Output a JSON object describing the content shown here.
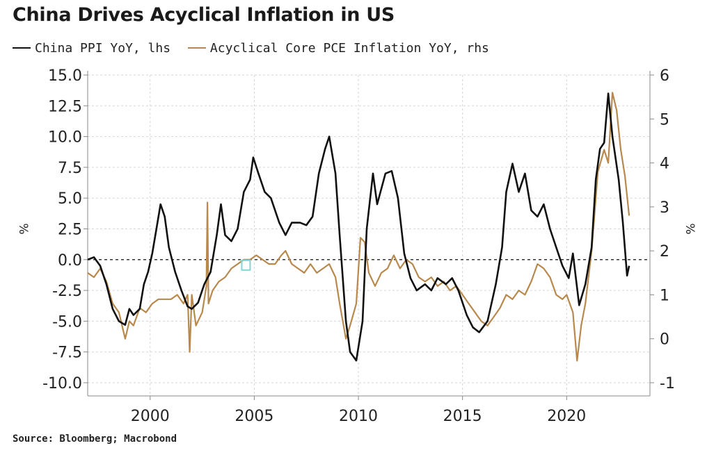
{
  "title": "China Drives Acyclical Inflation in US",
  "legend": {
    "china_ppi": "China PPI YoY, lhs",
    "core_pce": "Acyclical Core PCE Inflation YoY, rhs"
  },
  "source": "Source: Bloomberg; Macrobond",
  "colors": {
    "china_ppi": "#111111",
    "core_pce": "#b8894d",
    "zero_line": "#333333",
    "grid": "#d6d6d6",
    "marker": "#7fd6d6"
  },
  "chart_data": {
    "type": "line",
    "xlabel": "",
    "ylabel_left": "%",
    "ylabel_right": "%",
    "xlim": [
      1997.0,
      2024.0
    ],
    "ylim_left": [
      -10.0,
      15.0
    ],
    "ylim_right": [
      -1,
      6
    ],
    "x_ticks": [
      2000,
      2005,
      2010,
      2015,
      2020
    ],
    "x_tick_labels": [
      "2000",
      "2005",
      "2010",
      "2015",
      "2020"
    ],
    "y_left_ticks": [
      15.0,
      12.5,
      10.0,
      7.5,
      5.0,
      2.5,
      0.0,
      -2.5,
      -5.0,
      -7.5,
      -10.0
    ],
    "y_left_tick_labels": [
      "15.0",
      "12.5",
      "10.0",
      "7.5",
      "5.0",
      "2.5",
      "0.0",
      "-2.5",
      "-5.0",
      "-7.5",
      "-10.0"
    ],
    "y_right_ticks": [
      6,
      5,
      4,
      3,
      2,
      1,
      0,
      -1
    ],
    "y_right_tick_labels": [
      "6",
      "5",
      "4",
      "3",
      "2",
      "1",
      "0",
      "-1"
    ],
    "grid": true,
    "reference_line_left": 0.0,
    "series": [
      {
        "name": "China PPI YoY, lhs",
        "axis": "left",
        "x": [
          1997.0,
          1997.3,
          1997.6,
          1997.9,
          1998.2,
          1998.5,
          1998.8,
          1999.0,
          1999.2,
          1999.5,
          1999.7,
          1999.9,
          2000.1,
          2000.3,
          2000.5,
          2000.7,
          2000.9,
          2001.2,
          2001.5,
          2001.8,
          2002.0,
          2002.3,
          2002.6,
          2002.9,
          2003.2,
          2003.4,
          2003.6,
          2003.9,
          2004.2,
          2004.5,
          2004.8,
          2004.95,
          2005.2,
          2005.5,
          2005.8,
          2006.2,
          2006.5,
          2006.8,
          2007.2,
          2007.5,
          2007.8,
          2008.1,
          2008.4,
          2008.6,
          2008.9,
          2009.1,
          2009.4,
          2009.6,
          2009.9,
          2010.2,
          2010.4,
          2010.7,
          2010.9,
          2011.3,
          2011.6,
          2011.9,
          2012.2,
          2012.5,
          2012.8,
          2013.2,
          2013.5,
          2013.8,
          2014.2,
          2014.5,
          2014.8,
          2015.2,
          2015.5,
          2015.8,
          2016.2,
          2016.6,
          2016.9,
          2017.1,
          2017.4,
          2017.7,
          2018.0,
          2018.3,
          2018.6,
          2018.9,
          2019.2,
          2019.5,
          2019.8,
          2020.1,
          2020.3,
          2020.6,
          2020.9,
          2021.2,
          2021.4,
          2021.6,
          2021.8,
          2022.0,
          2022.2,
          2022.5,
          2022.7,
          2022.9,
          2023.0
        ],
        "values": [
          0.0,
          0.2,
          -0.5,
          -2.0,
          -4.0,
          -5.0,
          -5.3,
          -4.0,
          -4.5,
          -4.0,
          -2.0,
          -1.0,
          0.5,
          2.5,
          4.5,
          3.5,
          1.0,
          -1.0,
          -2.5,
          -3.8,
          -4.0,
          -3.5,
          -2.0,
          -1.0,
          2.0,
          4.5,
          2.0,
          1.5,
          2.5,
          5.5,
          6.5,
          8.3,
          7.0,
          5.5,
          5.0,
          3.0,
          2.0,
          3.0,
          3.0,
          2.8,
          3.5,
          7.0,
          9.0,
          10.0,
          7.0,
          2.0,
          -5.0,
          -7.5,
          -8.2,
          -5.0,
          2.5,
          7.0,
          4.5,
          7.0,
          7.2,
          5.0,
          0.5,
          -1.5,
          -2.5,
          -2.0,
          -2.5,
          -1.5,
          -2.0,
          -1.5,
          -2.5,
          -4.5,
          -5.5,
          -5.9,
          -5.0,
          -2.0,
          1.0,
          5.5,
          7.8,
          5.5,
          7.0,
          4.0,
          3.5,
          4.5,
          2.5,
          1.0,
          -0.5,
          -1.5,
          0.5,
          -3.7,
          -2.0,
          1.0,
          6.5,
          9.0,
          9.5,
          13.5,
          10.0,
          6.5,
          3.0,
          -1.3,
          -0.5
        ]
      },
      {
        "name": "Acyclical Core PCE Inflation YoY, rhs",
        "axis": "right",
        "x": [
          1997.0,
          1997.3,
          1997.6,
          1997.9,
          1998.2,
          1998.5,
          1998.8,
          1999.0,
          1999.2,
          1999.5,
          1999.8,
          2000.1,
          2000.4,
          2000.7,
          2001.0,
          2001.3,
          2001.6,
          2001.8,
          2001.9,
          2002.0,
          2002.2,
          2002.5,
          2002.7,
          2002.75,
          2002.8,
          2003.0,
          2003.3,
          2003.6,
          2003.9,
          2004.2,
          2004.5,
          2004.8,
          2005.1,
          2005.4,
          2005.7,
          2006.0,
          2006.3,
          2006.5,
          2006.8,
          2007.1,
          2007.4,
          2007.7,
          2008.0,
          2008.3,
          2008.6,
          2008.9,
          2009.1,
          2009.4,
          2009.6,
          2009.9,
          2010.1,
          2010.3,
          2010.5,
          2010.8,
          2011.1,
          2011.4,
          2011.7,
          2012.0,
          2012.3,
          2012.6,
          2012.9,
          2013.2,
          2013.5,
          2013.8,
          2014.1,
          2014.4,
          2014.7,
          2015.0,
          2015.3,
          2015.6,
          2015.9,
          2016.2,
          2016.5,
          2016.8,
          2017.1,
          2017.4,
          2017.7,
          2018.0,
          2018.3,
          2018.6,
          2018.9,
          2019.2,
          2019.5,
          2019.8,
          2020.0,
          2020.3,
          2020.5,
          2020.7,
          2020.9,
          2021.2,
          2021.5,
          2021.8,
          2022.0,
          2022.2,
          2022.4,
          2022.6,
          2022.8,
          2023.0
        ],
        "values": [
          1.5,
          1.4,
          1.6,
          1.3,
          0.8,
          0.6,
          0.0,
          0.4,
          0.3,
          0.7,
          0.6,
          0.8,
          0.9,
          0.9,
          0.9,
          1.0,
          0.8,
          1.0,
          -0.3,
          1.0,
          0.3,
          0.6,
          1.2,
          3.1,
          0.8,
          1.1,
          1.3,
          1.4,
          1.6,
          1.7,
          1.8,
          1.8,
          1.9,
          1.8,
          1.7,
          1.7,
          1.9,
          2.0,
          1.7,
          1.6,
          1.5,
          1.7,
          1.5,
          1.6,
          1.7,
          1.4,
          0.8,
          0.0,
          0.3,
          0.8,
          2.3,
          2.2,
          1.5,
          1.2,
          1.5,
          1.6,
          1.9,
          1.6,
          1.8,
          1.7,
          1.4,
          1.3,
          1.4,
          1.2,
          1.3,
          1.1,
          1.2,
          1.0,
          0.8,
          0.6,
          0.4,
          0.3,
          0.5,
          0.7,
          1.0,
          0.9,
          1.1,
          1.0,
          1.3,
          1.7,
          1.6,
          1.4,
          1.0,
          0.9,
          1.0,
          0.6,
          -0.5,
          0.3,
          0.8,
          2.0,
          3.8,
          4.3,
          4.0,
          5.6,
          5.2,
          4.3,
          3.7,
          2.8
        ]
      }
    ]
  }
}
